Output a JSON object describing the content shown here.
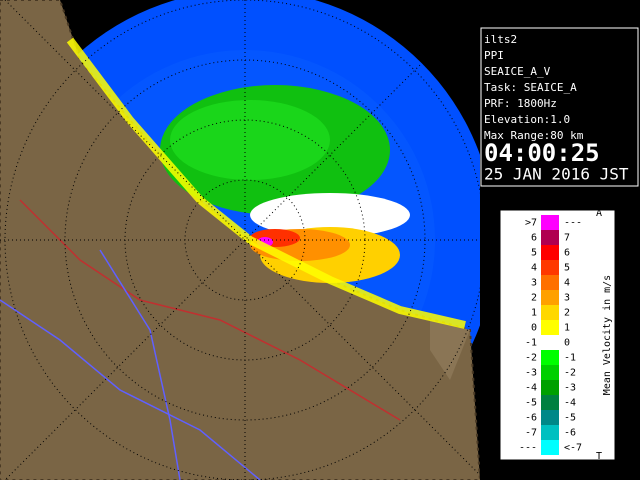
{
  "info": {
    "lines": [
      "ilts2",
      "PPI",
      "SEAICE_A_V",
      "Task: SEAICE_A",
      "PRF: 1800Hz",
      "Elevation:1.0",
      "Max Range:80 km"
    ],
    "time": "04:00:25",
    "date": "25 JAN 2016 JST"
  },
  "legend": {
    "title": "Mean Velocity in m/s",
    "top_mark": "A",
    "bottom_mark": "T",
    "left_labels": [
      ">7",
      "6",
      "5",
      "4",
      "3",
      "2",
      "1",
      "0",
      "-1",
      "-2",
      "-3",
      "-4",
      "-5",
      "-6",
      "-7",
      "---"
    ],
    "right_labels": [
      "---",
      "7",
      "6",
      "5",
      "4",
      "3",
      "2",
      "1",
      "0",
      "-1",
      "-2",
      "-3",
      "-4",
      "-5",
      "-6",
      "<-7"
    ],
    "colors": [
      "#ff00ff",
      "#b00050",
      "#ff0000",
      "#ff3800",
      "#ff7000",
      "#ffa000",
      "#ffd800",
      "#ffff00",
      "#ffffff",
      "#00ff00",
      "#00d000",
      "#00a000",
      "#008040",
      "#008888",
      "#00c0c0",
      "#00ffff"
    ]
  }
}
